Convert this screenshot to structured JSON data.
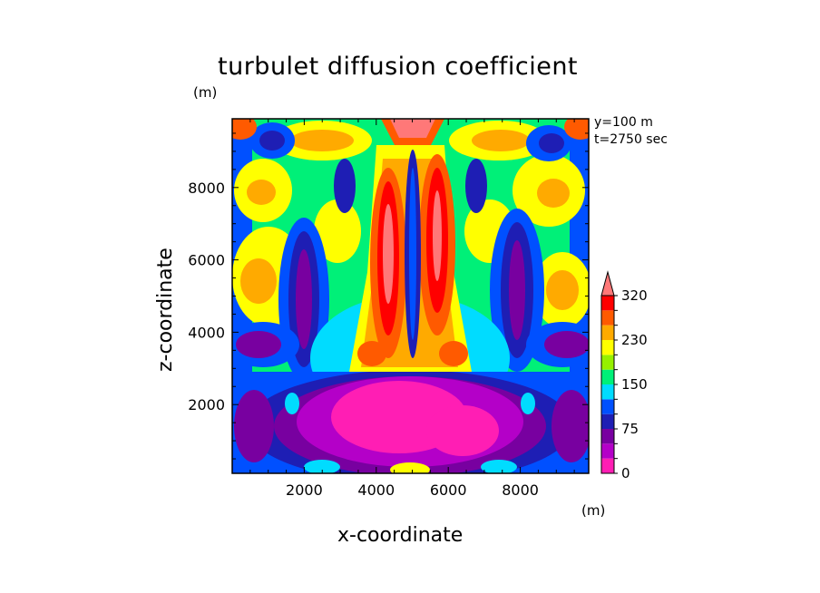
{
  "chart_data": {
    "type": "heatmap",
    "title": "turbulet diffusion coefficient",
    "xlabel": "x-coordinate",
    "ylabel": "z-coordinate",
    "x_unit": "(m)",
    "z_unit": "(m)",
    "annotations": [
      "y=100 m",
      "t=2750 sec"
    ],
    "xlim": [
      0,
      9900
    ],
    "ylim": [
      100,
      9900
    ],
    "x_ticks": [
      2000,
      4000,
      6000,
      8000
    ],
    "y_ticks": [
      2000,
      4000,
      6000,
      8000
    ],
    "colorbar": {
      "levels": [
        0,
        25,
        50,
        75,
        100,
        125,
        150,
        175,
        200,
        230,
        260,
        290,
        320
      ],
      "labels": [
        "0",
        "75",
        "150",
        "230",
        "320"
      ],
      "colors": [
        "#ff1eb4",
        "#b400c8",
        "#7800a0",
        "#1e1eb4",
        "#0050ff",
        "#00dcff",
        "#00f078",
        "#96f000",
        "#ffff00",
        "#ffaa00",
        "#ff5a00",
        "#ff0000",
        "#ff7878"
      ],
      "extend": "max"
    }
  }
}
